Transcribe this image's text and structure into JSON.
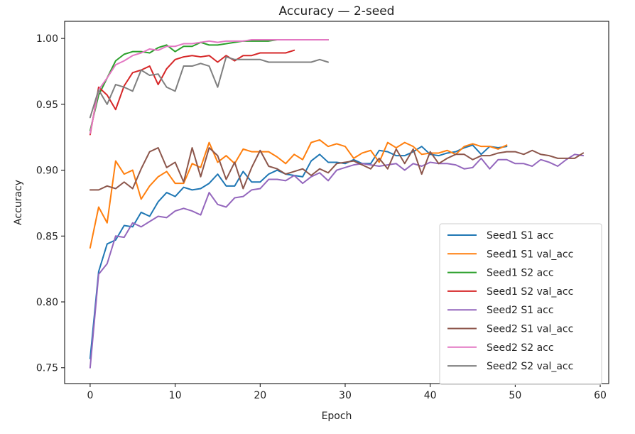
{
  "chart_data": {
    "type": "line",
    "title": "Accuracy — 2-seed",
    "xlabel": "Epoch",
    "ylabel": "Accuracy",
    "xlim": [
      -3,
      61
    ],
    "ylim": [
      0.738,
      1.013
    ],
    "xticks": [
      0,
      10,
      20,
      30,
      40,
      50,
      60
    ],
    "yticks": [
      0.75,
      0.8,
      0.85,
      0.9,
      0.95,
      1.0
    ],
    "ytick_labels": [
      "0.75",
      "0.80",
      "0.85",
      "0.90",
      "0.95",
      "1.00"
    ],
    "grid": false,
    "legend": "lower-right",
    "series": [
      {
        "name": "Seed1 S1 acc",
        "color": "#1f77b4",
        "x": [
          0,
          1,
          2,
          3,
          4,
          5,
          6,
          7,
          8,
          9,
          10,
          11,
          12,
          13,
          14,
          15,
          16,
          17,
          18,
          19,
          20,
          21,
          22,
          23,
          24,
          25,
          26,
          27,
          28,
          29,
          30,
          31,
          32,
          33,
          34,
          35,
          36,
          37,
          38,
          39,
          40,
          41,
          42,
          43,
          44,
          45,
          46,
          47,
          48,
          49
        ],
        "y": [
          0.757,
          0.823,
          0.844,
          0.847,
          0.858,
          0.857,
          0.868,
          0.865,
          0.876,
          0.883,
          0.88,
          0.887,
          0.885,
          0.886,
          0.89,
          0.897,
          0.888,
          0.888,
          0.899,
          0.891,
          0.891,
          0.897,
          0.9,
          0.897,
          0.896,
          0.895,
          0.907,
          0.912,
          0.906,
          0.906,
          0.905,
          0.908,
          0.905,
          0.905,
          0.915,
          0.914,
          0.911,
          0.911,
          0.914,
          0.918,
          0.912,
          0.911,
          0.913,
          0.914,
          0.917,
          0.919,
          0.912,
          0.918,
          0.917,
          0.918
        ]
      },
      {
        "name": "Seed1 S1 val_acc",
        "color": "#ff7f0e",
        "x": [
          0,
          1,
          2,
          3,
          4,
          5,
          6,
          7,
          8,
          9,
          10,
          11,
          12,
          13,
          14,
          15,
          16,
          17,
          18,
          19,
          20,
          21,
          22,
          23,
          24,
          25,
          26,
          27,
          28,
          29,
          30,
          31,
          32,
          33,
          34,
          35,
          36,
          37,
          38,
          39,
          40,
          41,
          42,
          43,
          44,
          45,
          46,
          47,
          48,
          49
        ],
        "y": [
          0.841,
          0.872,
          0.86,
          0.907,
          0.897,
          0.9,
          0.878,
          0.888,
          0.895,
          0.899,
          0.89,
          0.89,
          0.905,
          0.902,
          0.921,
          0.906,
          0.911,
          0.905,
          0.916,
          0.914,
          0.914,
          0.914,
          0.91,
          0.905,
          0.912,
          0.908,
          0.921,
          0.923,
          0.918,
          0.92,
          0.918,
          0.909,
          0.913,
          0.915,
          0.906,
          0.921,
          0.917,
          0.921,
          0.918,
          0.912,
          0.913,
          0.913,
          0.915,
          0.912,
          0.918,
          0.92,
          0.918,
          0.918,
          0.916,
          0.919
        ]
      },
      {
        "name": "Seed1 S2 acc",
        "color": "#2ca02c",
        "x": [
          0,
          1,
          2,
          3,
          4,
          5,
          6,
          7,
          8,
          9,
          10,
          11,
          12,
          13,
          14,
          15,
          16,
          17,
          18,
          19,
          20,
          21,
          22,
          23,
          24,
          25,
          26,
          27,
          28
        ],
        "y": [
          0.93,
          0.957,
          0.97,
          0.983,
          0.988,
          0.99,
          0.99,
          0.989,
          0.993,
          0.995,
          0.99,
          0.994,
          0.994,
          0.997,
          0.995,
          0.995,
          0.996,
          0.997,
          0.998,
          0.998,
          0.998,
          0.998,
          0.999,
          0.999,
          0.999,
          0.999,
          0.999,
          0.999,
          0.999
        ]
      },
      {
        "name": "Seed1 S2 val_acc",
        "color": "#d62728",
        "x": [
          0,
          1,
          2,
          3,
          4,
          5,
          6,
          7,
          8,
          9,
          10,
          11,
          12,
          13,
          14,
          15,
          16,
          17,
          18,
          19,
          20,
          21,
          22,
          23,
          24
        ],
        "y": [
          0.927,
          0.963,
          0.957,
          0.946,
          0.964,
          0.974,
          0.976,
          0.979,
          0.965,
          0.977,
          0.984,
          0.986,
          0.987,
          0.986,
          0.987,
          0.982,
          0.987,
          0.983,
          0.987,
          0.987,
          0.989,
          0.989,
          0.989,
          0.989,
          0.991
        ]
      },
      {
        "name": "Seed2 S1 acc",
        "color": "#9467bd",
        "x": [
          0,
          1,
          2,
          3,
          4,
          5,
          6,
          7,
          8,
          9,
          10,
          11,
          12,
          13,
          14,
          15,
          16,
          17,
          18,
          19,
          20,
          21,
          22,
          23,
          24,
          25,
          26,
          27,
          28,
          29,
          30,
          31,
          32,
          33,
          34,
          35,
          36,
          37,
          38,
          39,
          40,
          41,
          42,
          43,
          44,
          45,
          46,
          47,
          48,
          49,
          50,
          51,
          52,
          53,
          54,
          55,
          56,
          57,
          58
        ],
        "y": [
          0.75,
          0.821,
          0.829,
          0.85,
          0.849,
          0.86,
          0.857,
          0.861,
          0.865,
          0.864,
          0.869,
          0.871,
          0.869,
          0.866,
          0.883,
          0.874,
          0.872,
          0.879,
          0.88,
          0.885,
          0.886,
          0.893,
          0.893,
          0.892,
          0.896,
          0.89,
          0.895,
          0.898,
          0.892,
          0.9,
          0.902,
          0.904,
          0.905,
          0.904,
          0.903,
          0.904,
          0.905,
          0.9,
          0.905,
          0.903,
          0.906,
          0.905,
          0.905,
          0.904,
          0.901,
          0.902,
          0.909,
          0.901,
          0.908,
          0.908,
          0.905,
          0.905,
          0.903,
          0.908,
          0.906,
          0.903,
          0.908,
          0.912,
          0.911
        ]
      },
      {
        "name": "Seed2 S1 val_acc",
        "color": "#8c564b",
        "x": [
          0,
          1,
          2,
          3,
          4,
          5,
          6,
          7,
          8,
          9,
          10,
          11,
          12,
          13,
          14,
          15,
          16,
          17,
          18,
          19,
          20,
          21,
          22,
          23,
          24,
          25,
          26,
          27,
          28,
          29,
          30,
          31,
          32,
          33,
          34,
          35,
          36,
          37,
          38,
          39,
          40,
          41,
          42,
          43,
          44,
          45,
          46,
          47,
          48,
          49,
          50,
          51,
          52,
          53,
          54,
          55,
          56,
          57,
          58
        ],
        "y": [
          0.885,
          0.885,
          0.888,
          0.886,
          0.891,
          0.886,
          0.901,
          0.914,
          0.917,
          0.902,
          0.906,
          0.891,
          0.917,
          0.895,
          0.917,
          0.911,
          0.893,
          0.906,
          0.886,
          0.902,
          0.915,
          0.903,
          0.901,
          0.897,
          0.899,
          0.901,
          0.896,
          0.901,
          0.898,
          0.905,
          0.906,
          0.907,
          0.904,
          0.901,
          0.909,
          0.901,
          0.916,
          0.905,
          0.916,
          0.897,
          0.914,
          0.905,
          0.909,
          0.912,
          0.912,
          0.908,
          0.911,
          0.911,
          0.913,
          0.914,
          0.914,
          0.912,
          0.915,
          0.912,
          0.911,
          0.909,
          0.909,
          0.909,
          0.913
        ]
      },
      {
        "name": "Seed2 S2 acc",
        "color": "#e377c2",
        "x": [
          0,
          1,
          2,
          3,
          4,
          5,
          6,
          7,
          8,
          9,
          10,
          11,
          12,
          13,
          14,
          15,
          16,
          17,
          18,
          19,
          20,
          21,
          22,
          23,
          24,
          25,
          26,
          27,
          28
        ],
        "y": [
          0.928,
          0.961,
          0.97,
          0.98,
          0.983,
          0.987,
          0.989,
          0.992,
          0.991,
          0.994,
          0.994,
          0.996,
          0.996,
          0.997,
          0.998,
          0.997,
          0.998,
          0.998,
          0.998,
          0.999,
          0.999,
          0.999,
          0.999,
          0.999,
          0.999,
          0.999,
          0.999,
          0.999,
          0.999
        ]
      },
      {
        "name": "Seed2 S2 val_acc",
        "color": "#7f7f7f",
        "x": [
          0,
          1,
          2,
          3,
          4,
          5,
          6,
          7,
          8,
          9,
          10,
          11,
          12,
          13,
          14,
          15,
          16,
          17,
          18,
          19,
          20,
          21,
          22,
          23,
          24,
          25,
          26,
          27,
          28
        ],
        "y": [
          0.94,
          0.961,
          0.95,
          0.965,
          0.963,
          0.96,
          0.976,
          0.972,
          0.973,
          0.963,
          0.96,
          0.979,
          0.979,
          0.981,
          0.979,
          0.963,
          0.986,
          0.984,
          0.984,
          0.984,
          0.984,
          0.982,
          0.982,
          0.982,
          0.982,
          0.982,
          0.982,
          0.984,
          0.982
        ]
      }
    ]
  }
}
